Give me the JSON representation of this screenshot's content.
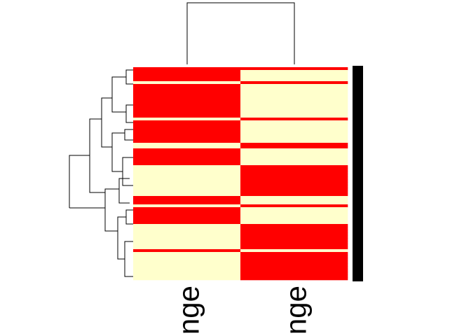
{
  "chart_data": {
    "type": "heatmap",
    "columns": [
      "nge",
      "nge"
    ],
    "colors": [
      "#ffffcc",
      "#ff0000"
    ],
    "values": [
      [
        1,
        1
      ],
      [
        1,
        0
      ],
      [
        1,
        0
      ],
      [
        1,
        0
      ],
      [
        1,
        0
      ],
      [
        0,
        1
      ],
      [
        1,
        0
      ],
      [
        1,
        0
      ],
      [
        1,
        0
      ],
      [
        1,
        0
      ],
      [
        1,
        0
      ],
      [
        1,
        0
      ],
      [
        1,
        0
      ],
      [
        1,
        0
      ],
      [
        1,
        0
      ],
      [
        1,
        0
      ],
      [
        1,
        0
      ],
      [
        1,
        0
      ],
      [
        0,
        1
      ],
      [
        1,
        0
      ],
      [
        1,
        0
      ],
      [
        1,
        0
      ],
      [
        1,
        0
      ],
      [
        1,
        0
      ],
      [
        1,
        0
      ],
      [
        1,
        0
      ],
      [
        1,
        0
      ],
      [
        0,
        1
      ],
      [
        0,
        1
      ],
      [
        1,
        0
      ],
      [
        1,
        0
      ],
      [
        1,
        0
      ],
      [
        1,
        0
      ],
      [
        1,
        0
      ],
      [
        1,
        0
      ],
      [
        0,
        1
      ],
      [
        0,
        1
      ],
      [
        0,
        1
      ],
      [
        0,
        1
      ],
      [
        0,
        1
      ],
      [
        0,
        1
      ],
      [
        0,
        1
      ],
      [
        0,
        1
      ],
      [
        0,
        1
      ],
      [
        0,
        1
      ],
      [
        0,
        1
      ],
      [
        1,
        0
      ],
      [
        1,
        0
      ],
      [
        1,
        0
      ],
      [
        0,
        1
      ],
      [
        1,
        0
      ],
      [
        1,
        0
      ],
      [
        1,
        0
      ],
      [
        1,
        0
      ],
      [
        1,
        0
      ],
      [
        1,
        0
      ],
      [
        0,
        1
      ],
      [
        0,
        1
      ],
      [
        0,
        1
      ],
      [
        0,
        1
      ],
      [
        0,
        1
      ],
      [
        0,
        1
      ],
      [
        0,
        1
      ],
      [
        0,
        1
      ],
      [
        0,
        1
      ],
      [
        1,
        0
      ],
      [
        0,
        1
      ],
      [
        0,
        1
      ],
      [
        0,
        1
      ],
      [
        0,
        1
      ],
      [
        0,
        1
      ],
      [
        0,
        1
      ],
      [
        0,
        1
      ],
      [
        0,
        1
      ],
      [
        0,
        1
      ],
      [
        0,
        1
      ]
    ]
  }
}
